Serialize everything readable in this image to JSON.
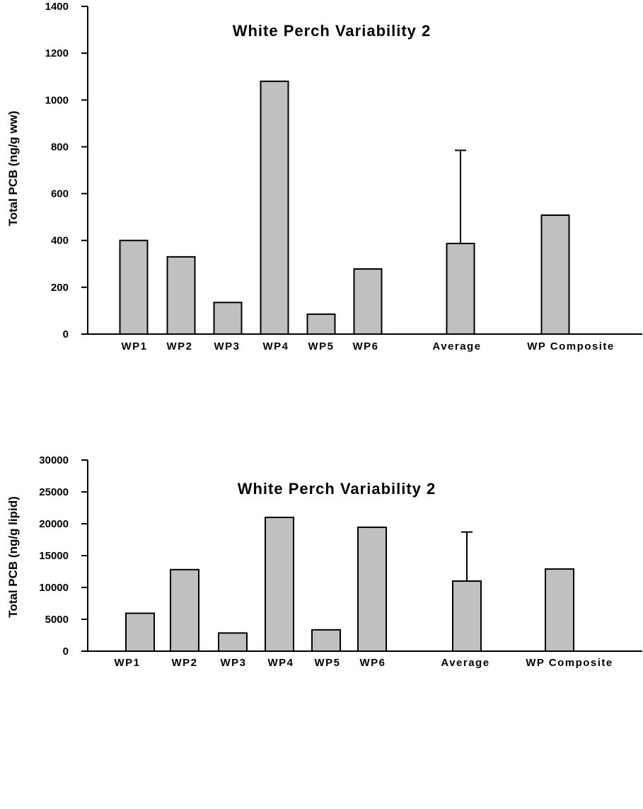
{
  "chart_data": [
    {
      "type": "bar",
      "title": "White Perch Variability 2",
      "xlabel": "",
      "ylabel": "Total PCB (ng/g ww)",
      "ylim": [
        0,
        1400
      ],
      "yticks": [
        "0",
        "200",
        "400",
        "600",
        "800",
        "1000",
        "1200",
        "1400"
      ],
      "categories": [
        "WP1",
        "WP2",
        "WP3",
        "WP4",
        "WP5",
        "WP6",
        "Average",
        "WP Composite"
      ],
      "values": [
        400,
        330,
        135,
        1080,
        85,
        278,
        387,
        null
      ],
      "error_bars": [
        null,
        null,
        null,
        null,
        null,
        null,
        785,
        null
      ],
      "composite_value": 508,
      "grid": false,
      "bar_color": "#c0c0c0"
    },
    {
      "type": "bar",
      "title": "White Perch Variability 2",
      "xlabel": "",
      "ylabel": "Total PCB (ng/g lipid)",
      "ylim": [
        0,
        30000
      ],
      "yticks": [
        "0",
        "5000",
        "10000",
        "15000",
        "20000",
        "25000",
        "30000"
      ],
      "categories": [
        "WP1",
        "WP2",
        "WP3",
        "WP4",
        "WP5",
        "WP6",
        "Average",
        "WP Composite"
      ],
      "values": [
        5950,
        12800,
        2850,
        21000,
        3350,
        19450,
        11000,
        null
      ],
      "error_bars": [
        null,
        null,
        null,
        null,
        null,
        null,
        18700,
        null
      ],
      "composite_value": 12900,
      "grid": false,
      "bar_color": "#c0c0c0"
    }
  ]
}
